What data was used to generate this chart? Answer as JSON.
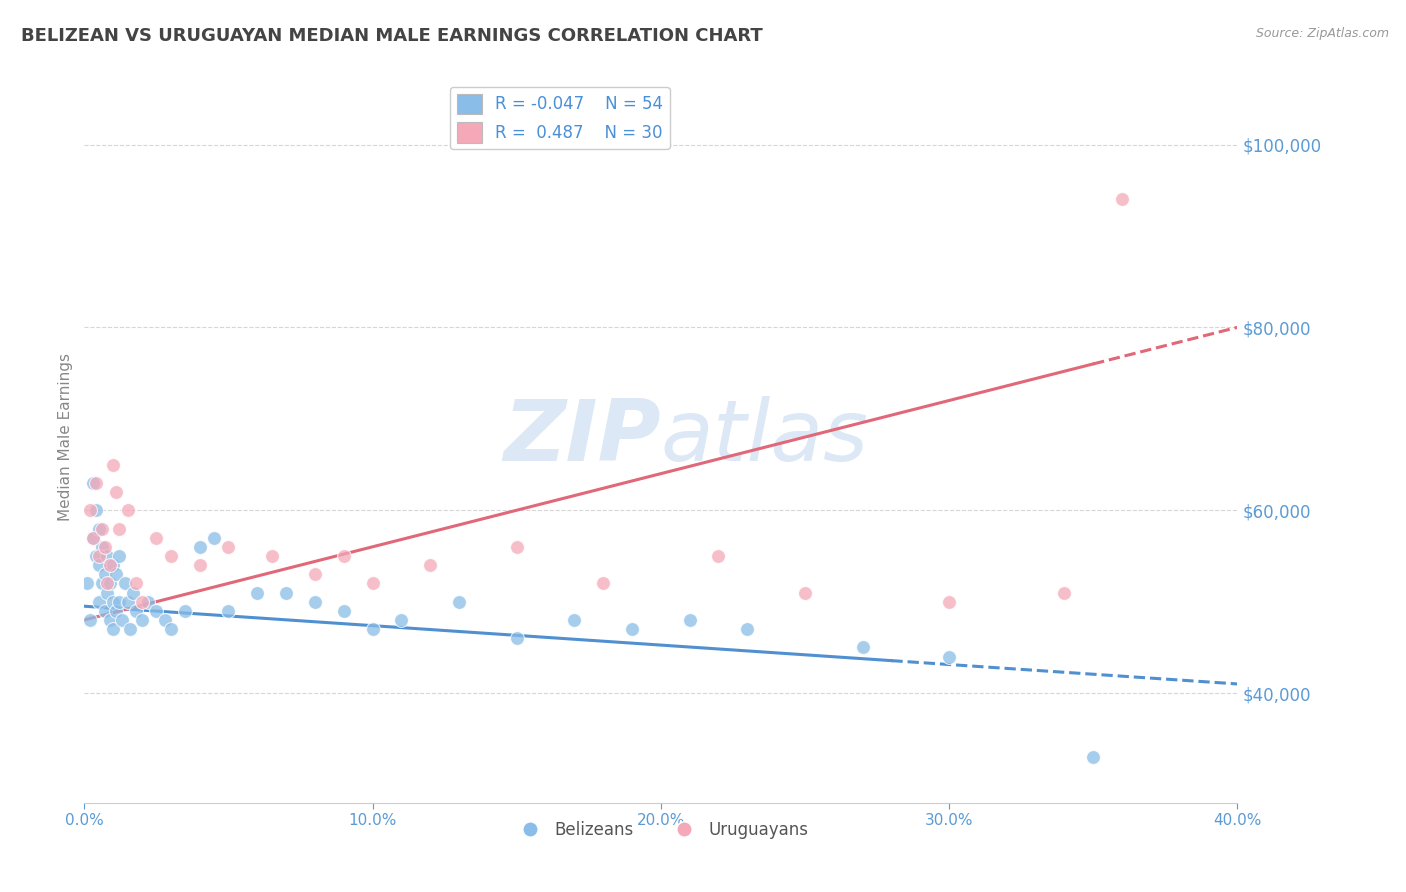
{
  "title": "BELIZEAN VS URUGUAYAN MEDIAN MALE EARNINGS CORRELATION CHART",
  "source": "Source: ZipAtlas.com",
  "xlabel_ticks": [
    "0.0%",
    "10.0%",
    "20.0%",
    "30.0%",
    "40.0%"
  ],
  "xlabel_vals": [
    0.0,
    10.0,
    20.0,
    30.0,
    40.0
  ],
  "ylabel_ticks": [
    "$40,000",
    "$60,000",
    "$80,000",
    "$100,000"
  ],
  "ylabel_vals": [
    40000,
    60000,
    80000,
    100000
  ],
  "xlim": [
    0.0,
    40.0
  ],
  "ylim": [
    28000,
    108000
  ],
  "belizean_R": -0.047,
  "belizean_N": 54,
  "uruguayan_R": 0.487,
  "uruguayan_N": 30,
  "blue_color": "#8abde8",
  "pink_color": "#f4a8b8",
  "blue_line_color": "#5090d0",
  "pink_line_color": "#e06878",
  "title_color": "#444444",
  "axis_label_color": "#5b9bd5",
  "legend_R_color": "#4a90d9",
  "watermark_color": "#dce8f5",
  "background_color": "#ffffff",
  "grid_color": "#cccccc",
  "blue_scatter_x": [
    0.1,
    0.2,
    0.3,
    0.3,
    0.4,
    0.4,
    0.5,
    0.5,
    0.5,
    0.6,
    0.6,
    0.7,
    0.7,
    0.8,
    0.8,
    0.9,
    0.9,
    1.0,
    1.0,
    1.0,
    1.1,
    1.1,
    1.2,
    1.2,
    1.3,
    1.4,
    1.5,
    1.6,
    1.7,
    1.8,
    2.0,
    2.2,
    2.5,
    2.8,
    3.0,
    3.5,
    4.0,
    4.5,
    5.0,
    6.0,
    7.0,
    8.0,
    9.0,
    10.0,
    11.0,
    13.0,
    15.0,
    17.0,
    19.0,
    21.0,
    23.0,
    27.0,
    30.0,
    35.0
  ],
  "blue_scatter_y": [
    52000,
    48000,
    57000,
    63000,
    55000,
    60000,
    50000,
    54000,
    58000,
    52000,
    56000,
    49000,
    53000,
    51000,
    55000,
    48000,
    52000,
    47000,
    50000,
    54000,
    49000,
    53000,
    50000,
    55000,
    48000,
    52000,
    50000,
    47000,
    51000,
    49000,
    48000,
    50000,
    49000,
    48000,
    47000,
    49000,
    56000,
    57000,
    49000,
    51000,
    51000,
    50000,
    49000,
    47000,
    48000,
    50000,
    46000,
    48000,
    47000,
    48000,
    47000,
    45000,
    44000,
    33000
  ],
  "pink_scatter_x": [
    0.2,
    0.3,
    0.4,
    0.5,
    0.6,
    0.7,
    0.8,
    0.9,
    1.0,
    1.1,
    1.2,
    1.5,
    1.8,
    2.0,
    2.5,
    3.0,
    4.0,
    5.0,
    6.5,
    8.0,
    9.0,
    10.0,
    12.0,
    15.0,
    18.0,
    22.0,
    25.0,
    30.0,
    34.0,
    36.0
  ],
  "pink_scatter_y": [
    60000,
    57000,
    63000,
    55000,
    58000,
    56000,
    52000,
    54000,
    65000,
    62000,
    58000,
    60000,
    52000,
    50000,
    57000,
    55000,
    54000,
    56000,
    55000,
    53000,
    55000,
    52000,
    54000,
    56000,
    52000,
    55000,
    51000,
    50000,
    51000,
    94000
  ],
  "blue_solid_end": 28.0,
  "pink_solid_end": 35.0,
  "blue_line_y0": 49500,
  "blue_line_y40": 41000,
  "pink_line_y0": 48000,
  "pink_line_y40": 80000
}
